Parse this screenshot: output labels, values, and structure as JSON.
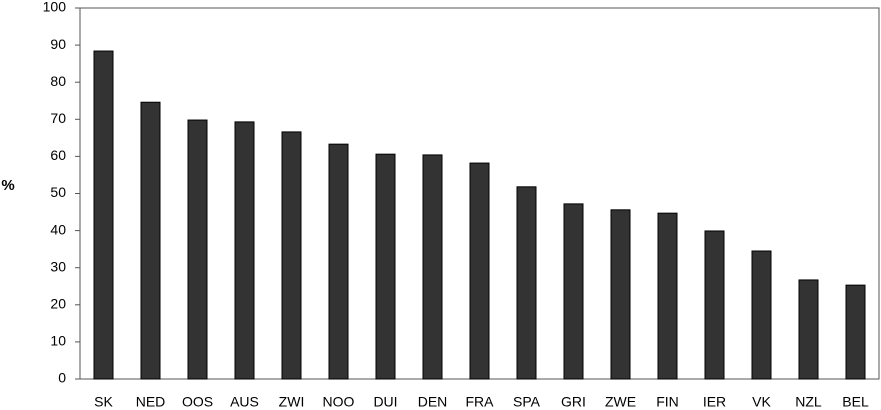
{
  "chart_data": {
    "type": "bar",
    "y_label": "%",
    "categories": [
      "SK",
      "NED",
      "OOS",
      "AUS",
      "ZWI",
      "NOO",
      "DUI",
      "DEN",
      "FRA",
      "SPA",
      "GRI",
      "ZWE",
      "FIN",
      "IER",
      "VK",
      "NZL",
      "BEL"
    ],
    "values": [
      88.4,
      74.6,
      69.8,
      69.3,
      66.6,
      63.3,
      60.6,
      60.4,
      58.2,
      51.8,
      47.2,
      45.6,
      44.7,
      39.9,
      34.5,
      26.7,
      25.3
    ],
    "color": "#333333",
    "ylim": [
      0,
      100
    ],
    "yticks": [
      0,
      10,
      20,
      30,
      40,
      50,
      60,
      70,
      80,
      90,
      100
    ],
    "grid": false
  }
}
